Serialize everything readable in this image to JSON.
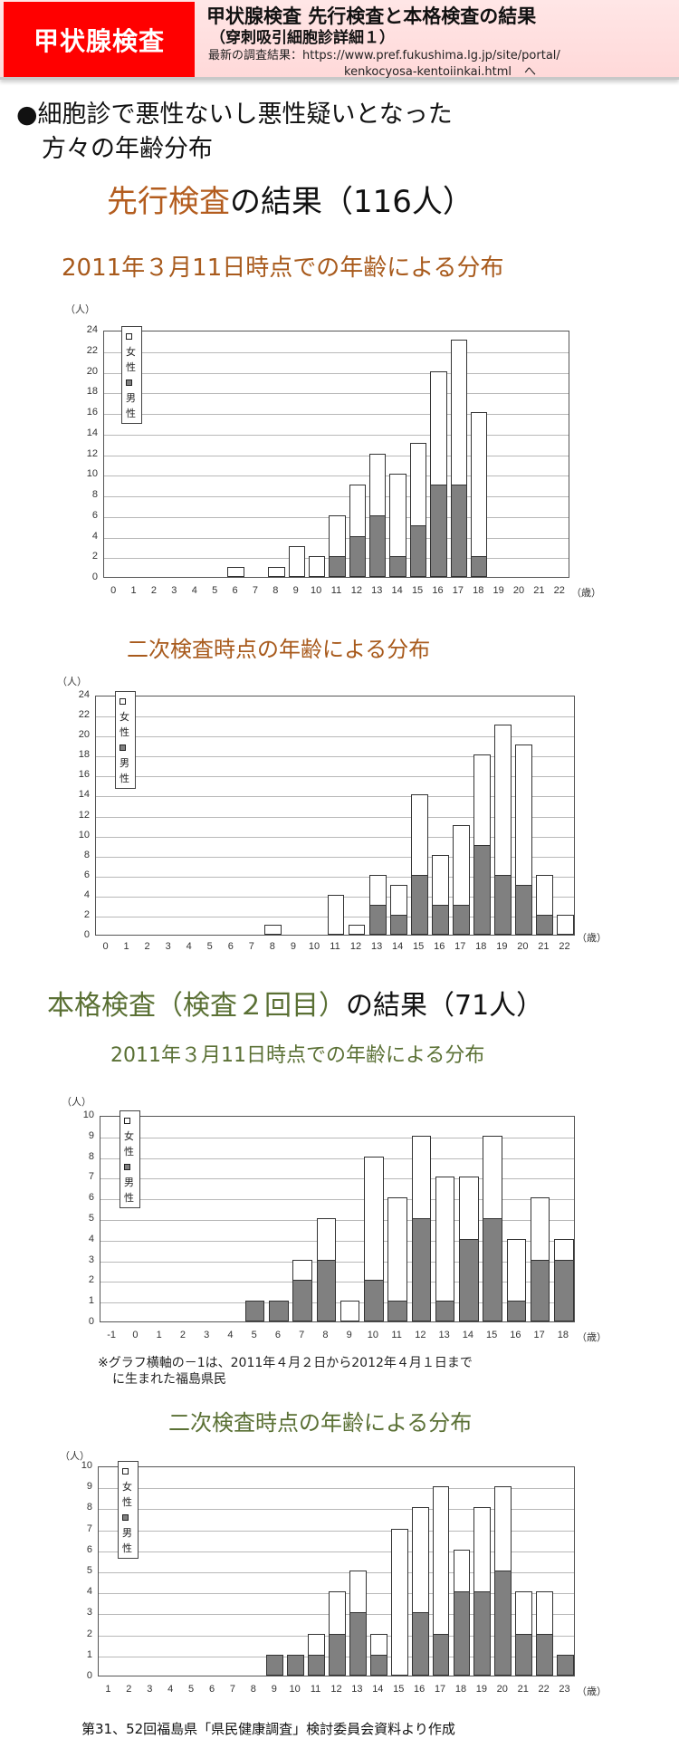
{
  "header": {
    "badge": "甲状腺検査",
    "title": "甲状腺検査 先行検査と本格検査の結果",
    "subtitle": "（穿刺吸引細胞診詳細１）",
    "link_label": "最新の調査結果：https://www.pref.fukushima.lg.jp/site/portal/",
    "link_cont": "kenkocyosa-kentoiinkai.html",
    "link_arrow": "へ"
  },
  "intro": {
    "line1": "●細胞診で悪性ないし悪性疑いとなった",
    "line2": "方々の年齢分布"
  },
  "section1": {
    "highlight": "先行検査",
    "rest": "の結果（116人）"
  },
  "section2": {
    "highlight": "本格検査（検査２回目）",
    "rest": "の結果（71人）"
  },
  "note": {
    "line1": "※グラフ横軸の－1は、2011年４月２日から2012年４月１日まで",
    "line2": "に生まれた福島県民"
  },
  "footer": "第31、52回福島県「県民健康調査」検討委員会資料より作成",
  "legend": {
    "female": "女性",
    "male": "男性"
  },
  "colors": {
    "female": "#ffffff",
    "male": "#808080",
    "orange_title": "#a85a1c",
    "green_title": "#5a7034",
    "badge": "#ff0000"
  },
  "chart_data": [
    {
      "type": "bar",
      "stacked": true,
      "title": "2011年３月11日時点での年齢による分布",
      "section": "先行検査の結果（116人）",
      "ylabel": "（人）",
      "xlabel": "（歳）",
      "ylim": [
        0,
        24
      ],
      "ystep": 2,
      "grid": true,
      "legend_position": "top-left",
      "categories": [
        "0",
        "1",
        "2",
        "3",
        "4",
        "5",
        "6",
        "7",
        "8",
        "9",
        "10",
        "11",
        "12",
        "13",
        "14",
        "15",
        "16",
        "17",
        "18",
        "19",
        "20",
        "21",
        "22"
      ],
      "series": [
        {
          "name": "男性",
          "values": [
            0,
            0,
            0,
            0,
            0,
            0,
            0,
            0,
            0,
            0,
            0,
            2,
            4,
            6,
            2,
            5,
            9,
            9,
            2,
            0,
            0,
            0,
            0
          ]
        },
        {
          "name": "女性",
          "values": [
            0,
            0,
            0,
            0,
            0,
            0,
            1,
            0,
            1,
            3,
            2,
            4,
            5,
            6,
            8,
            8,
            11,
            14,
            14,
            0,
            0,
            0,
            0
          ]
        }
      ],
      "totals": [
        0,
        0,
        0,
        0,
        0,
        0,
        1,
        0,
        1,
        3,
        2,
        6,
        9,
        12,
        10,
        13,
        20,
        23,
        16,
        0,
        0,
        0,
        0
      ]
    },
    {
      "type": "bar",
      "stacked": true,
      "title": "二次検査時点の年齢による分布",
      "section": "先行検査の結果（116人）",
      "ylabel": "（人）",
      "xlabel": "（歳）",
      "ylim": [
        0,
        24
      ],
      "ystep": 2,
      "grid": true,
      "legend_position": "top-left",
      "categories": [
        "0",
        "1",
        "2",
        "3",
        "4",
        "5",
        "6",
        "7",
        "8",
        "9",
        "10",
        "11",
        "12",
        "13",
        "14",
        "15",
        "16",
        "17",
        "18",
        "19",
        "20",
        "21",
        "22"
      ],
      "series": [
        {
          "name": "男性",
          "values": [
            0,
            0,
            0,
            0,
            0,
            0,
            0,
            0,
            0,
            0,
            0,
            0,
            0,
            3,
            2,
            6,
            3,
            3,
            9,
            6,
            5,
            2,
            0
          ]
        },
        {
          "name": "女性",
          "values": [
            0,
            0,
            0,
            0,
            0,
            0,
            0,
            0,
            1,
            0,
            0,
            4,
            1,
            3,
            3,
            8,
            5,
            8,
            9,
            15,
            14,
            4,
            2
          ]
        }
      ],
      "totals": [
        0,
        0,
        0,
        0,
        0,
        0,
        0,
        0,
        1,
        0,
        0,
        4,
        1,
        6,
        5,
        14,
        8,
        11,
        18,
        21,
        19,
        6,
        2
      ]
    },
    {
      "type": "bar",
      "stacked": true,
      "title": "2011年３月11日時点での年齢による分布",
      "section": "本格検査（検査２回目）の結果（71人）",
      "ylabel": "（人）",
      "xlabel": "（歳）",
      "ylim": [
        0,
        10
      ],
      "ystep": 1,
      "grid": true,
      "legend_position": "top-left",
      "categories": [
        "-1",
        "0",
        "1",
        "2",
        "3",
        "4",
        "5",
        "6",
        "7",
        "8",
        "9",
        "10",
        "11",
        "12",
        "13",
        "14",
        "15",
        "16",
        "17",
        "18"
      ],
      "series": [
        {
          "name": "男性",
          "values": [
            0,
            0,
            0,
            0,
            0,
            0,
            1,
            1,
            2,
            3,
            0,
            2,
            1,
            5,
            1,
            4,
            5,
            1,
            3,
            3
          ]
        },
        {
          "name": "女性",
          "values": [
            0,
            0,
            0,
            0,
            0,
            0,
            0,
            0,
            1,
            2,
            1,
            6,
            5,
            4,
            6,
            3,
            4,
            3,
            3,
            1
          ]
        }
      ],
      "totals": [
        0,
        0,
        0,
        0,
        0,
        0,
        1,
        1,
        3,
        5,
        1,
        8,
        6,
        9,
        7,
        7,
        9,
        4,
        6,
        4
      ]
    },
    {
      "type": "bar",
      "stacked": true,
      "title": "二次検査時点の年齢による分布",
      "section": "本格検査（検査２回目）の結果（71人）",
      "ylabel": "（人）",
      "xlabel": "（歳）",
      "ylim": [
        0,
        10
      ],
      "ystep": 1,
      "grid": true,
      "legend_position": "top-left",
      "categories": [
        "1",
        "2",
        "3",
        "4",
        "5",
        "6",
        "7",
        "8",
        "9",
        "10",
        "11",
        "12",
        "13",
        "14",
        "15",
        "16",
        "17",
        "18",
        "19",
        "20",
        "21",
        "22",
        "23"
      ],
      "series": [
        {
          "name": "男性",
          "values": [
            0,
            0,
            0,
            0,
            0,
            0,
            0,
            0,
            1,
            1,
            1,
            2,
            3,
            1,
            0,
            3,
            2,
            4,
            4,
            5,
            2,
            2,
            1
          ]
        },
        {
          "name": "女性",
          "values": [
            0,
            0,
            0,
            0,
            0,
            0,
            0,
            0,
            0,
            0,
            1,
            2,
            2,
            1,
            7,
            5,
            7,
            2,
            4,
            4,
            2,
            2,
            0
          ]
        }
      ],
      "totals": [
        0,
        0,
        0,
        0,
        0,
        0,
        0,
        0,
        1,
        1,
        2,
        4,
        5,
        2,
        7,
        8,
        9,
        6,
        8,
        9,
        4,
        4,
        1
      ]
    }
  ]
}
